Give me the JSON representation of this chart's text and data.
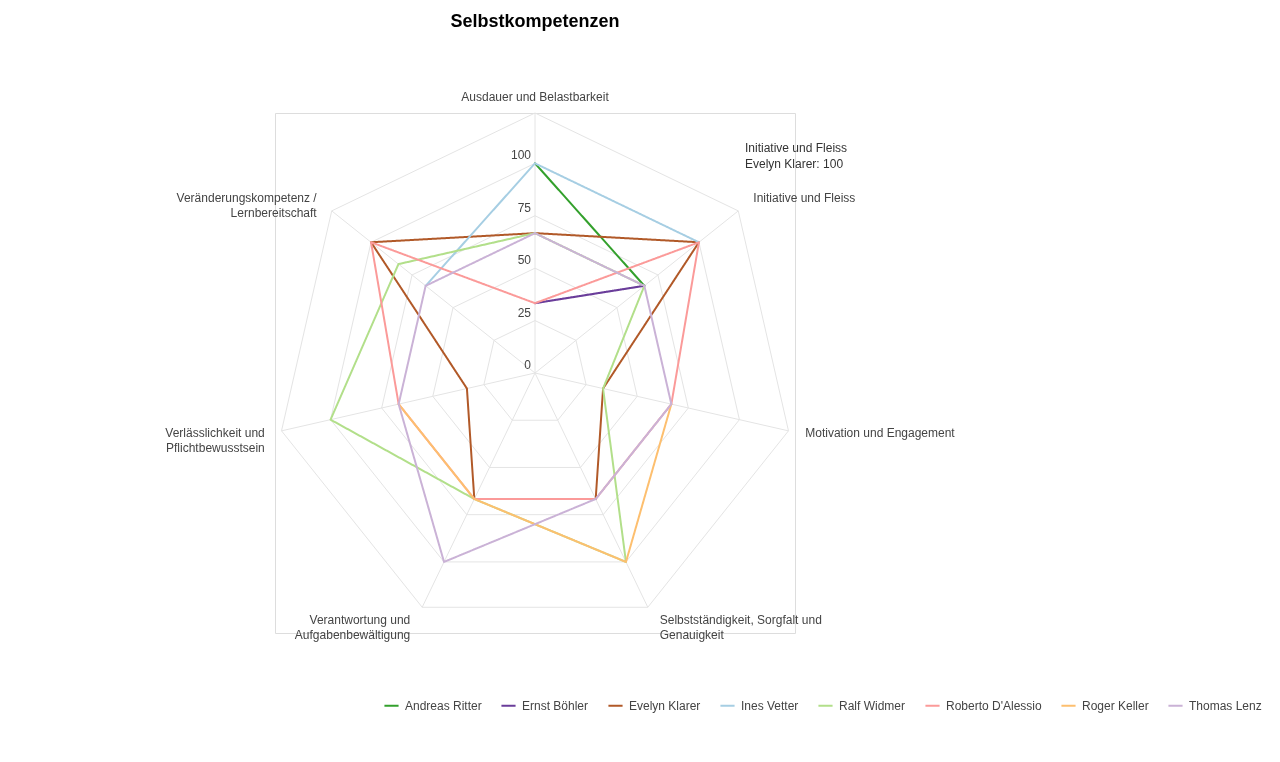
{
  "chart_data": {
    "type": "radar",
    "title": "Selbstkompetenzen",
    "categories": [
      "Ausdauer und Belastbarkeit",
      "Initiative und Fleiss",
      "Motivation und Engagement",
      "Selbstständigkeit, Sorgfalt und Genauigkeit",
      "Verantwortung und Aufgabenbewältigung",
      "Verlässlichkeit und Pflichtbewusstsein",
      "Veränderungskompetenz / Lernbereitschaft"
    ],
    "series": [
      {
        "name": "Andreas Ritter",
        "color": "#33a02c",
        "values": [
          100,
          66.7,
          null,
          null,
          null,
          null,
          null
        ]
      },
      {
        "name": "Ernst Böhler",
        "color": "#6a3d9a",
        "values": [
          33.3,
          66.7,
          null,
          null,
          null,
          null,
          null
        ]
      },
      {
        "name": "Evelyn Klarer",
        "color": "#b15928",
        "values": [
          66.7,
          100,
          33.3,
          66.7,
          66.7,
          33.3,
          100
        ]
      },
      {
        "name": "Ines Vetter",
        "color": "#a6cee3",
        "values": [
          100,
          100,
          null,
          null,
          null,
          null,
          66.7
        ]
      },
      {
        "name": "Ralf Widmer",
        "color": "#b2df8a",
        "values": [
          66.7,
          66.7,
          33.3,
          100,
          66.7,
          100,
          83.3
        ]
      },
      {
        "name": "Roberto D'Alessio",
        "color": "#fb9a99",
        "values": [
          33.3,
          100,
          66.7,
          66.7,
          66.7,
          66.7,
          100
        ]
      },
      {
        "name": "Roger Keller",
        "color": "#fdbf6f",
        "values": [
          null,
          null,
          66.7,
          100,
          66.7,
          66.7,
          null
        ]
      },
      {
        "name": "Thomas Lenz",
        "color": "#cab2d6",
        "values": [
          66.7,
          66.7,
          66.7,
          66.7,
          100,
          66.7,
          66.7
        ]
      }
    ],
    "ylim": [
      0,
      124
    ],
    "yticks": [
      0,
      25,
      50,
      75,
      100
    ],
    "grid": true,
    "legend": "bottom",
    "annotations": [
      "Initiative und Fleiss\nEvelyn Klarer: 100"
    ]
  }
}
